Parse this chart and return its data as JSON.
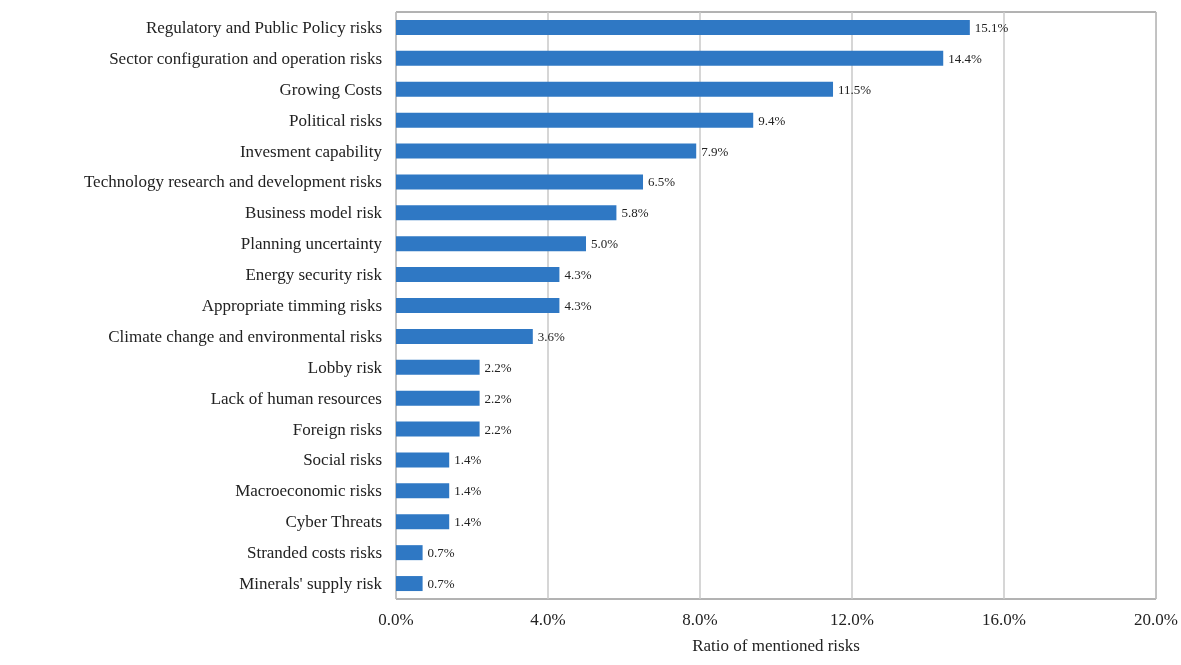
{
  "chart_data": {
    "type": "bar",
    "orientation": "horizontal",
    "xlabel": "Ratio of mentioned risks",
    "categories": [
      "Regulatory and Public Policy risks",
      "Sector configuration and operation risks",
      "Growing Costs",
      "Political risks",
      "Invesment capability",
      "Technology research and development risks",
      "Business model risk",
      "Planning uncertainty",
      "Energy security risk",
      "Appropriate timming risks",
      "Climate change and environmental risks",
      "Lobby risk",
      "Lack of human resources",
      "Foreign risks",
      "Social risks",
      "Macroeconomic risks",
      "Cyber Threats",
      "Stranded costs risks",
      "Minerals' supply risk"
    ],
    "values": [
      15.1,
      14.4,
      11.5,
      9.4,
      7.9,
      6.5,
      5.8,
      5.0,
      4.3,
      4.3,
      3.6,
      2.2,
      2.2,
      2.2,
      1.4,
      1.4,
      1.4,
      0.7,
      0.7
    ],
    "value_labels": [
      "15.1%",
      "14.4%",
      "11.5%",
      "9.4%",
      "7.9%",
      "6.5%",
      "5.8%",
      "5.0%",
      "4.3%",
      "4.3%",
      "3.6%",
      "2.2%",
      "2.2%",
      "2.2%",
      "1.4%",
      "1.4%",
      "1.4%",
      "0.7%",
      "0.7%"
    ],
    "color": "#2f78c4",
    "xlim": [
      0,
      20
    ],
    "xticks": [
      {
        "value": 0,
        "label": "0.0%"
      },
      {
        "value": 4,
        "label": "4.0%"
      },
      {
        "value": 8,
        "label": "8.0%"
      },
      {
        "value": 12,
        "label": "12.0%"
      },
      {
        "value": 16,
        "label": "16.0%"
      },
      {
        "value": 20,
        "label": "20.0%"
      }
    ],
    "grid": "x"
  }
}
